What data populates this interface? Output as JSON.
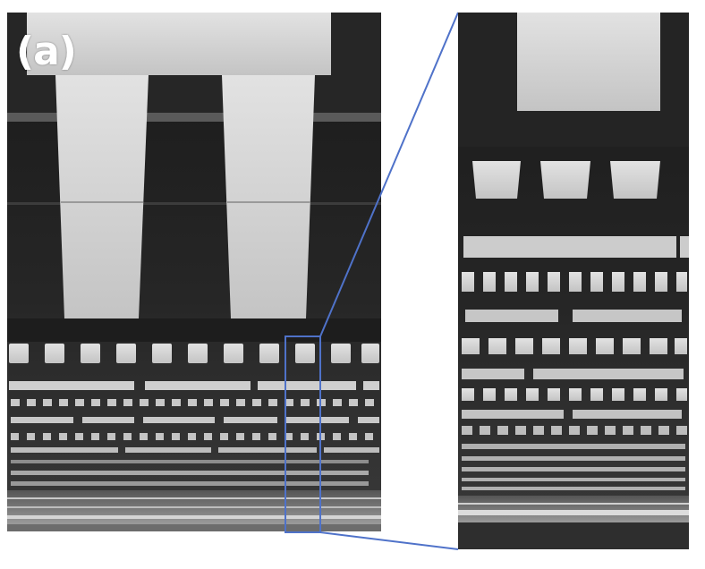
{
  "figure": {
    "panel_label": "(a)",
    "description_kind": "cross-section electron micrograph with zoom inset",
    "colors": {
      "background": "#ffffff",
      "dark_dielectric": "#1e1e1e",
      "metal_light": "#d8d8d8",
      "metal_mid": "#bdbdbd",
      "zoom_outline": "#4f72c9"
    }
  }
}
